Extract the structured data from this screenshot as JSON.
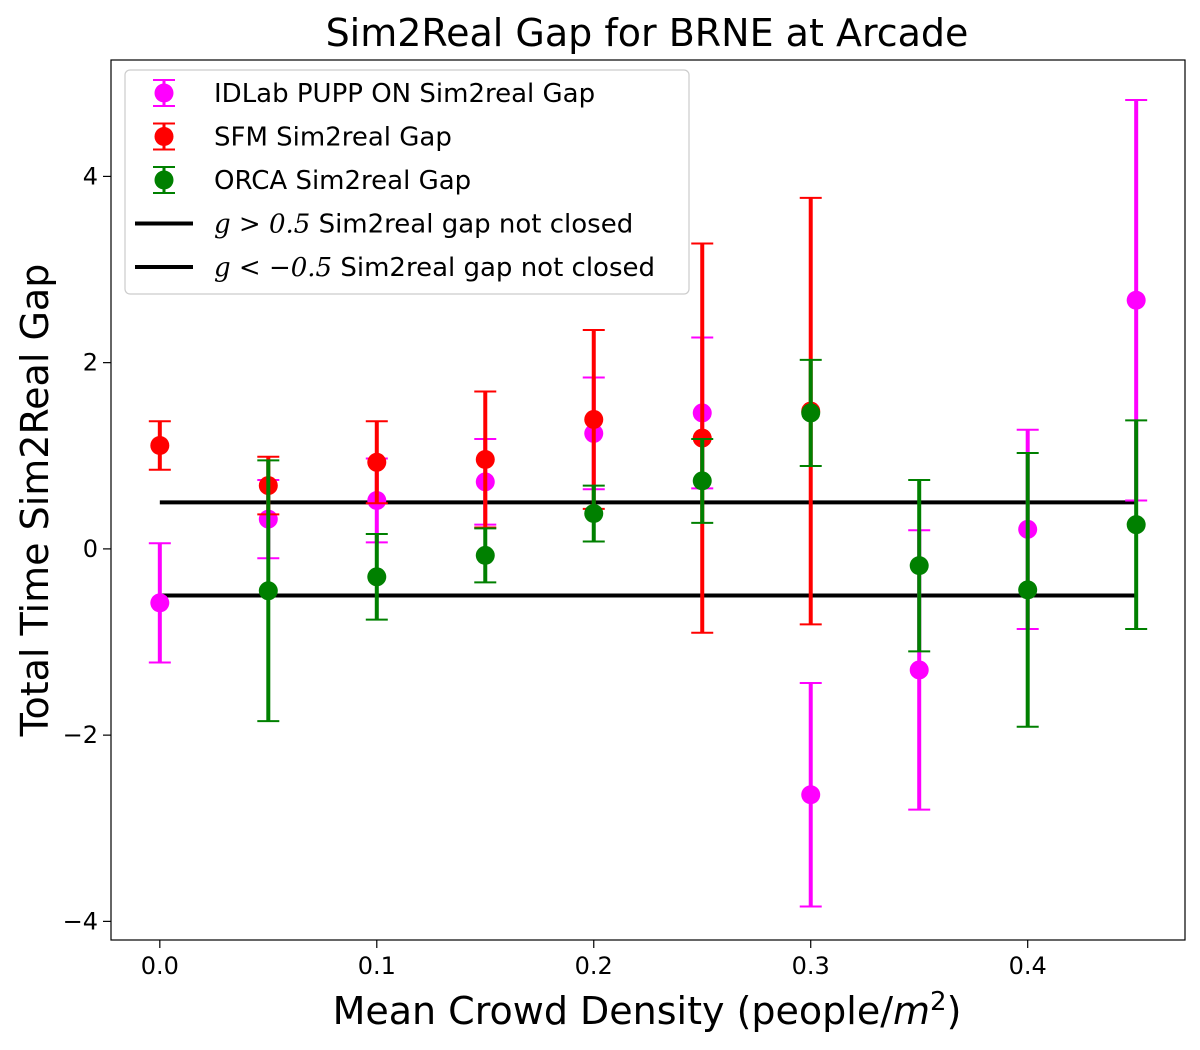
{
  "chart_data": {
    "type": "scatter",
    "title": "Sim2Real Gap for BRNE at Arcade",
    "xlabel": "Mean Crowd Density (people/m²)",
    "ylabel": "Total Time Sim2Real Gap",
    "xlim": [
      -0.0225,
      0.4725
    ],
    "ylim": [
      -4.2,
      5.25
    ],
    "x_ticks": [
      0.0,
      0.1,
      0.2,
      0.3,
      0.4
    ],
    "x_tick_labels": [
      "0.0",
      "0.1",
      "0.2",
      "0.3",
      "0.4"
    ],
    "y_ticks": [
      -4,
      -2,
      0,
      2,
      4
    ],
    "y_tick_labels": [
      "−4",
      "−2",
      "0",
      "2",
      "4"
    ],
    "grid": false,
    "legend_position": "top-left",
    "series": [
      {
        "name": "IDLab PUPP ON Sim2real Gap",
        "color": "#ff00ff",
        "x": [
          0.0,
          0.05,
          0.1,
          0.15,
          0.2,
          0.25,
          0.3,
          0.35,
          0.4,
          0.45
        ],
        "y": [
          -0.58,
          0.32,
          0.52,
          0.72,
          1.24,
          1.46,
          -2.64,
          -1.3,
          0.21,
          2.67
        ],
        "err": [
          0.64,
          0.42,
          0.45,
          0.46,
          0.6,
          0.81,
          1.2,
          1.5,
          1.07,
          2.15
        ]
      },
      {
        "name": "SFM Sim2real Gap",
        "color": "#ff0000",
        "x": [
          0.0,
          0.05,
          0.1,
          0.15,
          0.2,
          0.25,
          0.3
        ],
        "y": [
          1.11,
          0.68,
          0.93,
          0.96,
          1.39,
          1.19,
          1.48
        ],
        "err": [
          0.26,
          0.31,
          0.44,
          0.73,
          0.96,
          2.09,
          2.29
        ]
      },
      {
        "name": "ORCA Sim2real Gap",
        "color": "#008000",
        "x": [
          0.05,
          0.1,
          0.15,
          0.2,
          0.25,
          0.3,
          0.35,
          0.4,
          0.45
        ],
        "y": [
          -0.45,
          -0.3,
          -0.07,
          0.38,
          0.73,
          1.46,
          -0.18,
          -0.44,
          0.26
        ],
        "err": [
          1.4,
          0.46,
          0.29,
          0.3,
          0.45,
          0.57,
          0.92,
          1.47,
          1.12
        ]
      }
    ],
    "reference_lines": [
      {
        "name_math": "g > 0.5",
        "name_text": " Sim2real gap not closed",
        "y": 0.5,
        "color": "#000000"
      },
      {
        "name_math": "g < −0.5",
        "name_text": " Sim2real gap not closed",
        "y": -0.5,
        "color": "#000000"
      }
    ]
  }
}
